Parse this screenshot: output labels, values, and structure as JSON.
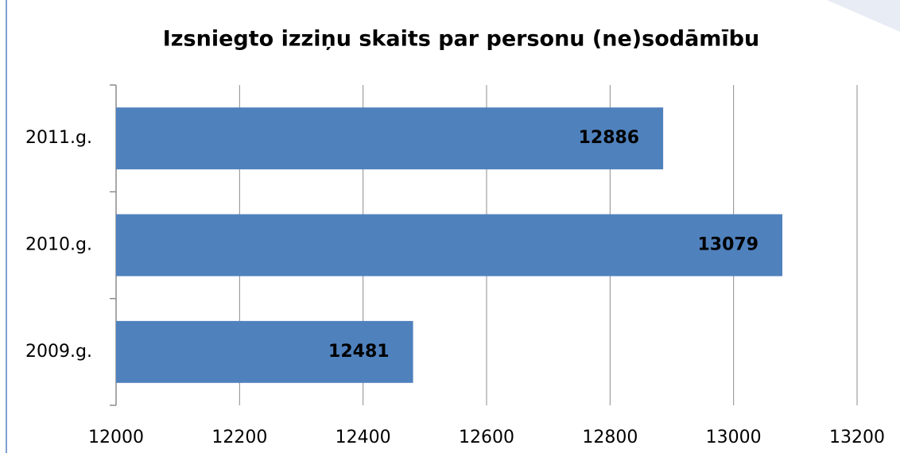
{
  "chart_data": {
    "type": "barh",
    "title": "Izsniegto izziņu skaits par personu (ne)sodāmību",
    "categories": [
      "2011.g.",
      "2010.g.",
      "2009.g."
    ],
    "values": [
      12886,
      13079,
      12481
    ],
    "color": "#4f81bd",
    "xlim": [
      12000,
      13200
    ],
    "xticks": [
      12000,
      12200,
      12400,
      12600,
      12800,
      13000,
      13200
    ],
    "grid": true
  }
}
